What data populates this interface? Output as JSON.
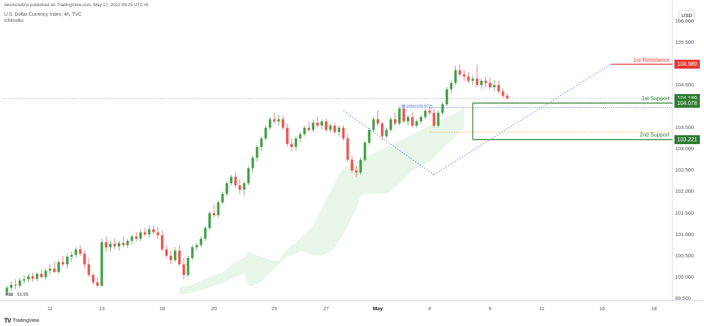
{
  "header": {
    "published": "desmondlzw published on TradingView.com, May 17, 2022 09:25 UTC+8",
    "symbol": "U.S. Dollar Currency Index, 4h, TVC",
    "indicator": "Ichimoku"
  },
  "rsi": {
    "label": "RSI",
    "value": "51.95"
  },
  "footer": {
    "brand": "TradingView",
    "logo": "TV"
  },
  "price_scale": {
    "currency": "USD"
  },
  "colors": {
    "up": "#26a69a",
    "up_candle": "#43a047",
    "down": "#ef5350",
    "cloud": "#e8f5e9",
    "resistance": "#e53935",
    "support": "#2e7d32",
    "fib_line": "#2962ff",
    "fib_level": "#f9a825"
  },
  "chart_data": {
    "type": "candlestick",
    "symbol": "DXY",
    "timeframe": "4h",
    "y_ticks": [
      "106.000",
      "105.500",
      "105.000",
      "104.500",
      "104.000",
      "103.500",
      "103.000",
      "102.500",
      "102.000",
      "101.500",
      "101.000",
      "100.500",
      "100.000",
      "99.500"
    ],
    "y_tick_values": [
      106.0,
      105.5,
      105.0,
      104.5,
      104.0,
      103.5,
      103.0,
      102.5,
      102.0,
      101.5,
      101.0,
      100.5,
      100.0,
      99.5
    ],
    "ylim": [
      99.5,
      106.3
    ],
    "x_ticks": [
      {
        "label": "11",
        "bar": 10
      },
      {
        "label": "13",
        "bar": 22
      },
      {
        "label": "18",
        "bar": 36
      },
      {
        "label": "20",
        "bar": 48
      },
      {
        "label": "25",
        "bar": 62
      },
      {
        "label": "27",
        "bar": 74
      },
      {
        "label": "May",
        "bar": 86,
        "major": true
      },
      {
        "label": "4",
        "bar": 98
      },
      {
        "label": "9",
        "bar": 112
      },
      {
        "label": "11",
        "bar": 124
      },
      {
        "label": "16",
        "bar": 138
      },
      {
        "label": "18",
        "bar": 150
      }
    ],
    "candles": [
      [
        99.65,
        99.8,
        99.6,
        99.75
      ],
      [
        99.75,
        99.9,
        99.68,
        99.82
      ],
      [
        99.82,
        99.95,
        99.72,
        99.8
      ],
      [
        99.8,
        99.98,
        99.74,
        99.92
      ],
      [
        99.92,
        100.05,
        99.85,
        99.95
      ],
      [
        99.95,
        100.08,
        99.88,
        100.02
      ],
      [
        100.02,
        100.1,
        99.9,
        99.96
      ],
      [
        99.96,
        100.12,
        99.9,
        100.08
      ],
      [
        100.08,
        100.18,
        99.98,
        100.0
      ],
      [
        100.0,
        100.2,
        99.95,
        100.15
      ],
      [
        100.15,
        100.3,
        100.05,
        100.2
      ],
      [
        100.2,
        100.35,
        100.1,
        100.12
      ],
      [
        100.12,
        100.4,
        100.08,
        100.35
      ],
      [
        100.35,
        100.5,
        100.25,
        100.3
      ],
      [
        100.3,
        100.55,
        100.2,
        100.48
      ],
      [
        100.48,
        100.6,
        100.35,
        100.52
      ],
      [
        100.52,
        100.7,
        100.45,
        100.65
      ],
      [
        100.65,
        100.75,
        100.5,
        100.55
      ],
      [
        100.55,
        100.62,
        100.2,
        100.3
      ],
      [
        100.3,
        100.45,
        100.0,
        100.05
      ],
      [
        100.05,
        100.1,
        99.82,
        99.88
      ],
      [
        99.88,
        100.0,
        99.75,
        99.8
      ],
      [
        99.8,
        100.9,
        99.78,
        100.82
      ],
      [
        100.82,
        100.95,
        100.6,
        100.7
      ],
      [
        100.7,
        100.85,
        100.6,
        100.78
      ],
      [
        100.78,
        100.9,
        100.65,
        100.72
      ],
      [
        100.72,
        100.85,
        100.62,
        100.8
      ],
      [
        100.8,
        100.95,
        100.7,
        100.75
      ],
      [
        100.75,
        100.9,
        100.68,
        100.85
      ],
      [
        100.85,
        101.0,
        100.78,
        100.95
      ],
      [
        100.95,
        101.05,
        100.85,
        100.9
      ],
      [
        100.9,
        101.1,
        100.85,
        101.05
      ],
      [
        101.05,
        101.15,
        100.95,
        101.0
      ],
      [
        101.0,
        101.2,
        100.92,
        101.12
      ],
      [
        101.12,
        101.22,
        101.0,
        101.05
      ],
      [
        101.05,
        101.18,
        100.9,
        100.98
      ],
      [
        100.98,
        101.1,
        100.6,
        100.65
      ],
      [
        100.65,
        100.75,
        100.45,
        100.5
      ],
      [
        100.5,
        100.62,
        100.3,
        100.4
      ],
      [
        100.4,
        100.7,
        100.35,
        100.62
      ],
      [
        100.62,
        100.75,
        100.25,
        100.3
      ],
      [
        100.3,
        100.45,
        99.95,
        100.05
      ],
      [
        100.05,
        100.5,
        100.0,
        100.45
      ],
      [
        100.45,
        100.75,
        100.4,
        100.7
      ],
      [
        100.7,
        100.8,
        100.62,
        100.75
      ],
      [
        100.75,
        100.95,
        100.7,
        100.9
      ],
      [
        100.9,
        101.2,
        100.85,
        101.15
      ],
      [
        101.15,
        101.55,
        101.1,
        101.5
      ],
      [
        101.5,
        101.7,
        101.4,
        101.45
      ],
      [
        101.45,
        101.8,
        101.4,
        101.75
      ],
      [
        101.75,
        102.0,
        101.7,
        101.95
      ],
      [
        101.95,
        102.25,
        101.9,
        102.2
      ],
      [
        102.2,
        102.4,
        102.15,
        102.35
      ],
      [
        102.35,
        102.45,
        102.1,
        102.15
      ],
      [
        102.15,
        102.3,
        101.95,
        102.05
      ],
      [
        102.05,
        102.25,
        101.9,
        102.2
      ],
      [
        102.2,
        102.6,
        102.15,
        102.55
      ],
      [
        102.55,
        102.85,
        102.45,
        102.8
      ],
      [
        102.8,
        103.1,
        102.7,
        103.05
      ],
      [
        103.05,
        103.3,
        102.95,
        103.25
      ],
      [
        103.25,
        103.55,
        103.2,
        103.5
      ],
      [
        103.5,
        103.75,
        103.45,
        103.7
      ],
      [
        103.7,
        103.85,
        103.6,
        103.65
      ],
      [
        103.65,
        103.8,
        103.55,
        103.7
      ],
      [
        103.7,
        103.78,
        103.45,
        103.5
      ],
      [
        103.5,
        103.6,
        103.05,
        103.12
      ],
      [
        103.12,
        103.25,
        102.95,
        103.05
      ],
      [
        103.05,
        103.3,
        102.98,
        103.25
      ],
      [
        103.25,
        103.4,
        103.15,
        103.35
      ],
      [
        103.35,
        103.55,
        103.3,
        103.5
      ],
      [
        103.5,
        103.65,
        103.4,
        103.45
      ],
      [
        103.45,
        103.7,
        103.4,
        103.62
      ],
      [
        103.62,
        103.75,
        103.5,
        103.55
      ],
      [
        103.55,
        103.7,
        103.45,
        103.65
      ],
      [
        103.65,
        103.72,
        103.4,
        103.45
      ],
      [
        103.45,
        103.6,
        103.4,
        103.55
      ],
      [
        103.55,
        103.62,
        103.35,
        103.4
      ],
      [
        103.4,
        103.55,
        103.3,
        103.5
      ],
      [
        103.5,
        103.55,
        103.2,
        103.25
      ],
      [
        103.25,
        103.35,
        102.7,
        102.75
      ],
      [
        102.75,
        102.85,
        102.45,
        102.5
      ],
      [
        102.5,
        102.6,
        102.35,
        102.45
      ],
      [
        102.45,
        102.8,
        102.4,
        102.75
      ],
      [
        102.75,
        103.2,
        102.7,
        103.15
      ],
      [
        103.15,
        103.5,
        103.1,
        103.45
      ],
      [
        103.45,
        103.75,
        103.4,
        103.7
      ],
      [
        103.7,
        103.9,
        103.55,
        103.6
      ],
      [
        103.6,
        103.65,
        103.2,
        103.3
      ],
      [
        103.3,
        103.5,
        103.25,
        103.45
      ],
      [
        103.45,
        103.75,
        103.4,
        103.7
      ],
      [
        103.7,
        103.85,
        103.55,
        103.6
      ],
      [
        103.6,
        104.0,
        103.55,
        103.95
      ],
      [
        103.95,
        104.05,
        103.6,
        103.65
      ],
      [
        103.65,
        103.8,
        103.55,
        103.75
      ],
      [
        103.75,
        103.85,
        103.5,
        103.55
      ],
      [
        103.55,
        103.7,
        103.5,
        103.65
      ],
      [
        103.65,
        103.8,
        103.6,
        103.75
      ],
      [
        103.75,
        103.95,
        103.7,
        103.9
      ],
      [
        103.9,
        104.0,
        103.8,
        103.85
      ],
      [
        103.85,
        103.95,
        103.5,
        103.55
      ],
      [
        103.55,
        103.9,
        103.5,
        103.85
      ],
      [
        103.85,
        104.1,
        103.8,
        104.05
      ],
      [
        104.05,
        104.45,
        104.0,
        104.4
      ],
      [
        104.4,
        104.6,
        104.3,
        104.55
      ],
      [
        104.55,
        104.95,
        104.5,
        104.85
      ],
      [
        104.85,
        104.99,
        104.7,
        104.75
      ],
      [
        104.75,
        104.85,
        104.6,
        104.7
      ],
      [
        104.7,
        104.8,
        104.55,
        104.6
      ],
      [
        104.6,
        104.72,
        104.5,
        104.65
      ],
      [
        104.65,
        104.98,
        104.45,
        104.5
      ],
      [
        104.5,
        104.65,
        104.4,
        104.6
      ],
      [
        104.6,
        104.7,
        104.45,
        104.55
      ],
      [
        104.55,
        104.68,
        104.4,
        104.45
      ],
      [
        104.45,
        104.62,
        104.35,
        104.5
      ],
      [
        104.5,
        104.6,
        104.3,
        104.35
      ],
      [
        104.35,
        104.42,
        104.2,
        104.25
      ],
      [
        104.25,
        104.3,
        104.15,
        104.19
      ]
    ],
    "cloud": [
      [
        99.6,
        99.75
      ],
      [
        99.6,
        99.78
      ],
      [
        99.62,
        99.8
      ],
      [
        99.64,
        99.82
      ],
      [
        99.68,
        99.88
      ],
      [
        99.7,
        99.92
      ],
      [
        99.72,
        99.96
      ],
      [
        99.76,
        100.0
      ],
      [
        99.8,
        100.05
      ],
      [
        99.82,
        100.08
      ],
      [
        99.85,
        100.1
      ],
      [
        99.9,
        100.2
      ],
      [
        99.95,
        100.3
      ],
      [
        100.0,
        100.35
      ],
      [
        100.05,
        100.4
      ],
      [
        100.1,
        100.45
      ],
      [
        99.8,
        100.6
      ],
      [
        99.8,
        100.55
      ],
      [
        99.85,
        100.5
      ],
      [
        99.9,
        100.48
      ],
      [
        100.0,
        100.45
      ],
      [
        100.1,
        100.4
      ],
      [
        100.2,
        100.38
      ],
      [
        100.3,
        100.4
      ],
      [
        100.4,
        100.5
      ],
      [
        100.5,
        100.65
      ],
      [
        100.5,
        100.75
      ],
      [
        100.55,
        100.8
      ],
      [
        100.6,
        100.9
      ],
      [
        100.6,
        101.0
      ],
      [
        100.55,
        101.1
      ],
      [
        100.5,
        101.2
      ],
      [
        100.5,
        101.4
      ],
      [
        100.5,
        101.6
      ],
      [
        100.55,
        101.8
      ],
      [
        100.6,
        102.0
      ],
      [
        100.7,
        102.2
      ],
      [
        100.85,
        102.4
      ],
      [
        101.0,
        102.55
      ],
      [
        101.2,
        102.6
      ],
      [
        101.4,
        102.65
      ],
      [
        101.6,
        102.7
      ],
      [
        101.9,
        102.75
      ],
      [
        101.95,
        102.8
      ],
      [
        101.95,
        102.85
      ],
      [
        101.95,
        102.9
      ],
      [
        101.95,
        102.95
      ],
      [
        101.95,
        103.0
      ],
      [
        101.95,
        103.05
      ],
      [
        102.0,
        103.1
      ],
      [
        102.1,
        103.15
      ],
      [
        102.2,
        103.2
      ],
      [
        102.3,
        103.25
      ],
      [
        102.4,
        103.3
      ],
      [
        102.5,
        103.35
      ],
      [
        102.55,
        103.4
      ],
      [
        102.6,
        103.45
      ],
      [
        102.65,
        103.5
      ],
      [
        102.7,
        103.55
      ],
      [
        102.8,
        103.6
      ],
      [
        102.9,
        103.65
      ],
      [
        103.0,
        103.7
      ],
      [
        103.1,
        103.75
      ],
      [
        103.2,
        103.8
      ],
      [
        103.3,
        103.85
      ],
      [
        103.4,
        103.9
      ],
      [
        103.5,
        104.0
      ]
    ],
    "cloud_start_bar": 90,
    "levels": [
      {
        "name": "1st Resistance",
        "value": 104.989,
        "label": "104.989",
        "color": "#e53935"
      },
      {
        "name": "1st Support",
        "value": 104.078,
        "label": "104.078",
        "color": "#2e7d32"
      },
      {
        "name": "2nd Support",
        "value": 103.221,
        "label": "103.221",
        "color": "#2e7d32"
      }
    ],
    "last_price": {
      "value": 104.189,
      "label": "104.189"
    },
    "fibonacci": {
      "label": "38.20%(103.972)",
      "value": 103.972,
      "level": 103.4
    }
  }
}
